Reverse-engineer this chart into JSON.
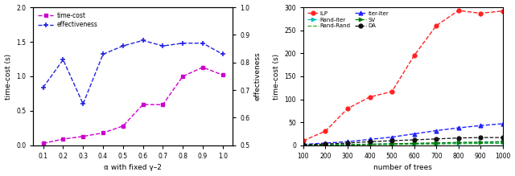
{
  "left": {
    "alpha": [
      0.1,
      0.2,
      0.3,
      0.4,
      0.5,
      0.6,
      0.7,
      0.8,
      0.9,
      1.0
    ],
    "time_cost": [
      0.03,
      0.09,
      0.13,
      0.18,
      0.28,
      0.59,
      0.59,
      1.0,
      1.13,
      1.02
    ],
    "effectiveness": [
      0.71,
      0.81,
      0.65,
      0.83,
      0.86,
      0.88,
      0.86,
      0.87,
      0.87,
      0.83
    ],
    "time_cost_color": "#cc00cc",
    "effectiveness_color": "#2222dd",
    "xlabel": "α with fixed γ–2",
    "ylabel_left": "time-cost (s)",
    "ylabel_right": "effectiveness",
    "ylim_left": [
      0.0,
      2.0
    ],
    "ylim_right": [
      0.5,
      1.0
    ],
    "yticks_left": [
      0.0,
      0.5,
      1.0,
      1.5,
      2.0
    ],
    "yticks_right": [
      0.5,
      0.6,
      0.7,
      0.8,
      0.9,
      1.0
    ]
  },
  "right": {
    "x": [
      100,
      200,
      300,
      400,
      500,
      600,
      700,
      800,
      900,
      1000
    ],
    "ILP": [
      10,
      31,
      80,
      105,
      117,
      195,
      260,
      293,
      287,
      292
    ],
    "Rand_Iter": [
      1.0,
      1.5,
      2.0,
      2.5,
      3.0,
      3.5,
      4.0,
      5.0,
      6.0,
      7.0
    ],
    "Rand_Rand": [
      0.5,
      0.8,
      1.0,
      1.5,
      2.0,
      2.5,
      3.0,
      3.5,
      4.0,
      4.5
    ],
    "Iter_Iter": [
      2,
      5,
      8,
      13,
      18,
      25,
      32,
      38,
      43,
      47
    ],
    "SV": [
      0.5,
      1.0,
      1.5,
      2.5,
      3.5,
      4.5,
      5.5,
      6.5,
      7.0,
      8.0
    ],
    "DA": [
      1,
      3,
      5,
      8,
      10,
      12,
      14,
      16,
      17,
      17
    ],
    "ILP_color": "#ff2222",
    "Rand_Iter_color": "#00bbbb",
    "Rand_Rand_color": "#22aa22",
    "Iter_Iter_color": "#2222ff",
    "SV_color": "#007700",
    "DA_color": "#111111",
    "xlabel": "number of trees",
    "ylabel": "time-cost (s)",
    "ylim": [
      0,
      300
    ],
    "yticks": [
      0,
      50,
      100,
      150,
      200,
      250,
      300
    ]
  }
}
